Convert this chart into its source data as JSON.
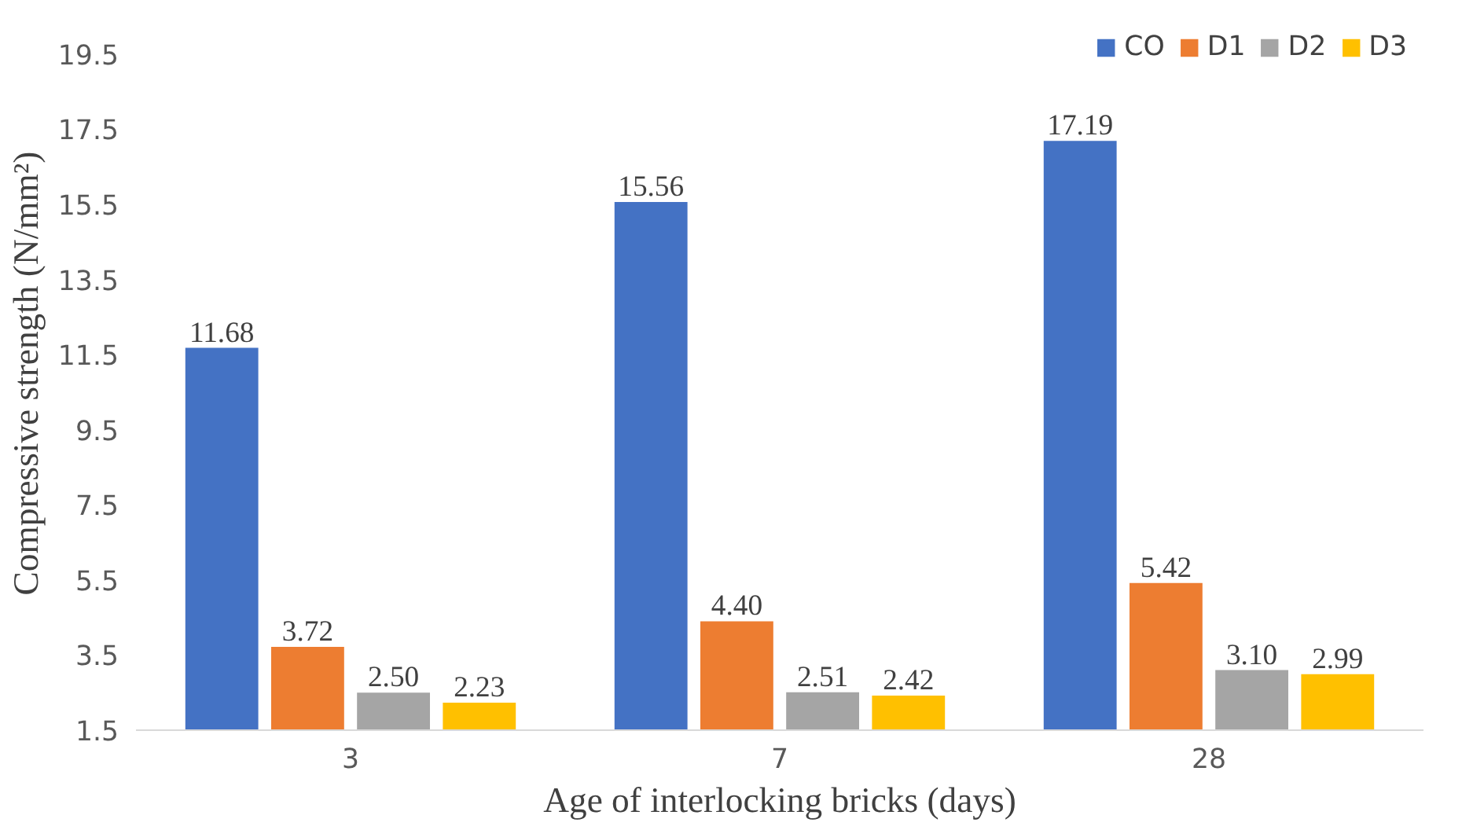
{
  "chart_data": {
    "type": "bar",
    "xlabel": "Age of interlocking bricks (days)",
    "ylabel": "Compressive strength (N/mm²)",
    "categories": [
      "3",
      "7",
      "28"
    ],
    "series": [
      {
        "name": "CO",
        "color": "#4472c4",
        "values": [
          11.68,
          15.56,
          17.19
        ],
        "value_labels": [
          "11.68",
          "15.56",
          "17.19"
        ]
      },
      {
        "name": "D1",
        "color": "#ed7d31",
        "values": [
          3.72,
          4.4,
          5.42
        ],
        "value_labels": [
          "3.72",
          "4.40",
          "5.42"
        ]
      },
      {
        "name": "D2",
        "color": "#a5a5a5",
        "values": [
          2.5,
          2.51,
          3.1
        ],
        "value_labels": [
          "2.50",
          "2.51",
          "3.10"
        ]
      },
      {
        "name": "D3",
        "color": "#ffc000",
        "values": [
          2.23,
          2.42,
          2.99
        ],
        "value_labels": [
          "2.23",
          "2.42",
          "2.99"
        ]
      }
    ],
    "ylim": [
      1.5,
      19.5
    ],
    "yticks": [
      1.5,
      3.5,
      5.5,
      7.5,
      9.5,
      11.5,
      13.5,
      15.5,
      17.5,
      19.5
    ],
    "grid": false,
    "legend": "top right"
  }
}
